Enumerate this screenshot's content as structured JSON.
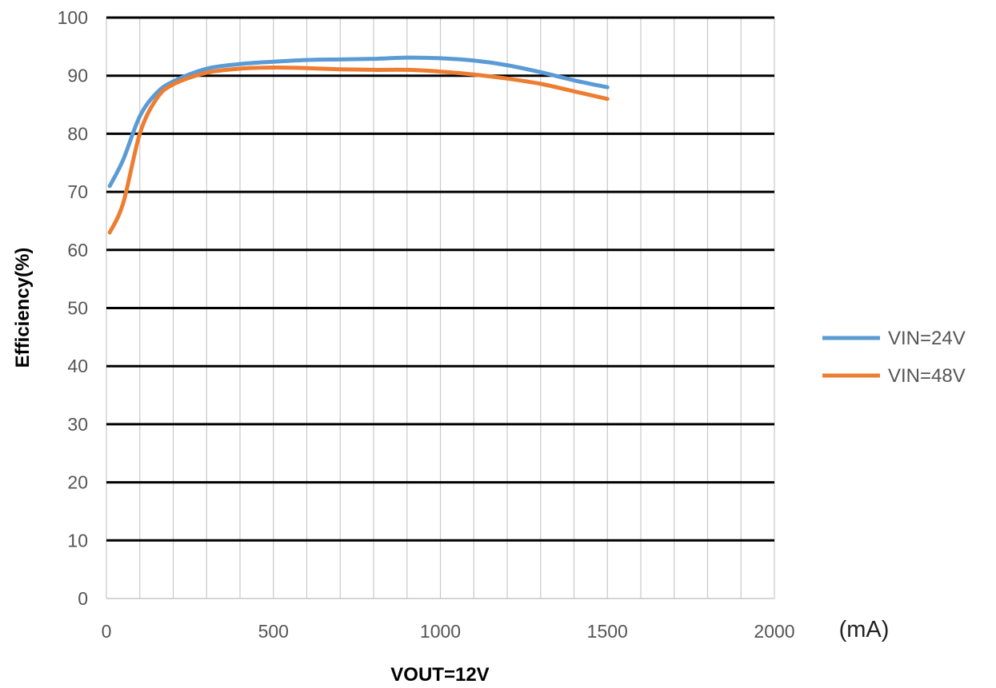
{
  "chart_data": {
    "type": "line",
    "xlabel": "VOUT=12V",
    "ylabel": "Efficiency(%)",
    "x_unit": "(mA)",
    "xlim": [
      0,
      2000
    ],
    "ylim": [
      0,
      100
    ],
    "xticks": [
      0,
      500,
      1000,
      1500,
      2000
    ],
    "yticks": [
      0,
      10,
      20,
      30,
      40,
      50,
      60,
      70,
      80,
      90,
      100
    ],
    "x_minor_step": 100,
    "grid": true,
    "legend": "right",
    "series": [
      {
        "name": "VIN=24V",
        "color": "#5B9BD5",
        "x": [
          10,
          50,
          100,
          150,
          200,
          300,
          400,
          500,
          600,
          700,
          800,
          900,
          1000,
          1100,
          1200,
          1300,
          1400,
          1500
        ],
        "y": [
          71,
          75.5,
          83,
          87,
          89,
          91.2,
          92,
          92.4,
          92.7,
          92.8,
          92.9,
          93.1,
          93,
          92.6,
          91.8,
          90.6,
          89.2,
          88
        ]
      },
      {
        "name": "VIN=48V",
        "color": "#ED7D31",
        "x": [
          10,
          50,
          100,
          150,
          200,
          300,
          400,
          500,
          600,
          700,
          800,
          900,
          1000,
          1100,
          1200,
          1300,
          1400,
          1500
        ],
        "y": [
          63,
          68,
          80,
          86,
          88.5,
          90.5,
          91.2,
          91.4,
          91.3,
          91.1,
          91,
          91,
          90.7,
          90.2,
          89.5,
          88.6,
          87.3,
          86
        ]
      }
    ]
  }
}
